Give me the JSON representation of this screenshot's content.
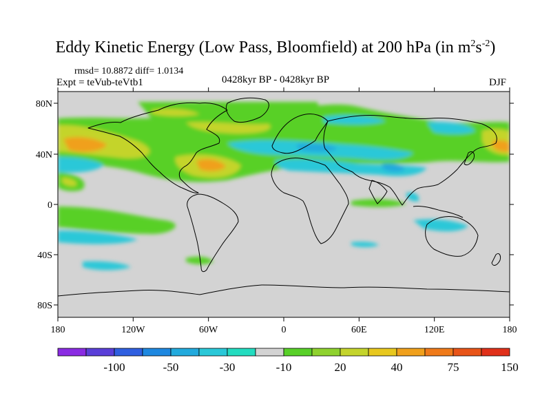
{
  "title": {
    "main": "Eddy Kinetic Energy (Low Pass, Bloomfield) at 200 hPa (in m",
    "sup1": "2",
    "mid": "s",
    "sup2": "-2",
    "close": ")"
  },
  "stats": "rmsd= 10.8872 diff= 1.0134",
  "expt": "Expt = teVub-teVtb1",
  "period": "0428kyr BP - 0428kyr BP",
  "season": "DJF",
  "map": {
    "lat_ticks": [
      "80N",
      "40N",
      "0",
      "40S",
      "80S"
    ],
    "lon_ticks": [
      "180",
      "120W",
      "60W",
      "0",
      "60E",
      "120E",
      "180"
    ],
    "background_color": "#d3d3d3",
    "coast_color": "#000000"
  },
  "colorbar": {
    "labels": [
      "-100",
      "-50",
      "-30",
      "-10",
      "20",
      "40",
      "75",
      "150"
    ],
    "colors": [
      "#8a2be2",
      "#5a3fd8",
      "#2f5fe0",
      "#1e88e0",
      "#22aadd",
      "#2ac8d8",
      "#23dcc0",
      "#d3d3d3",
      "#58d028",
      "#8fd22e",
      "#c4d42c",
      "#e8c81e",
      "#f0a01c",
      "#ef7a1a",
      "#e85418",
      "#e0301a"
    ]
  }
}
